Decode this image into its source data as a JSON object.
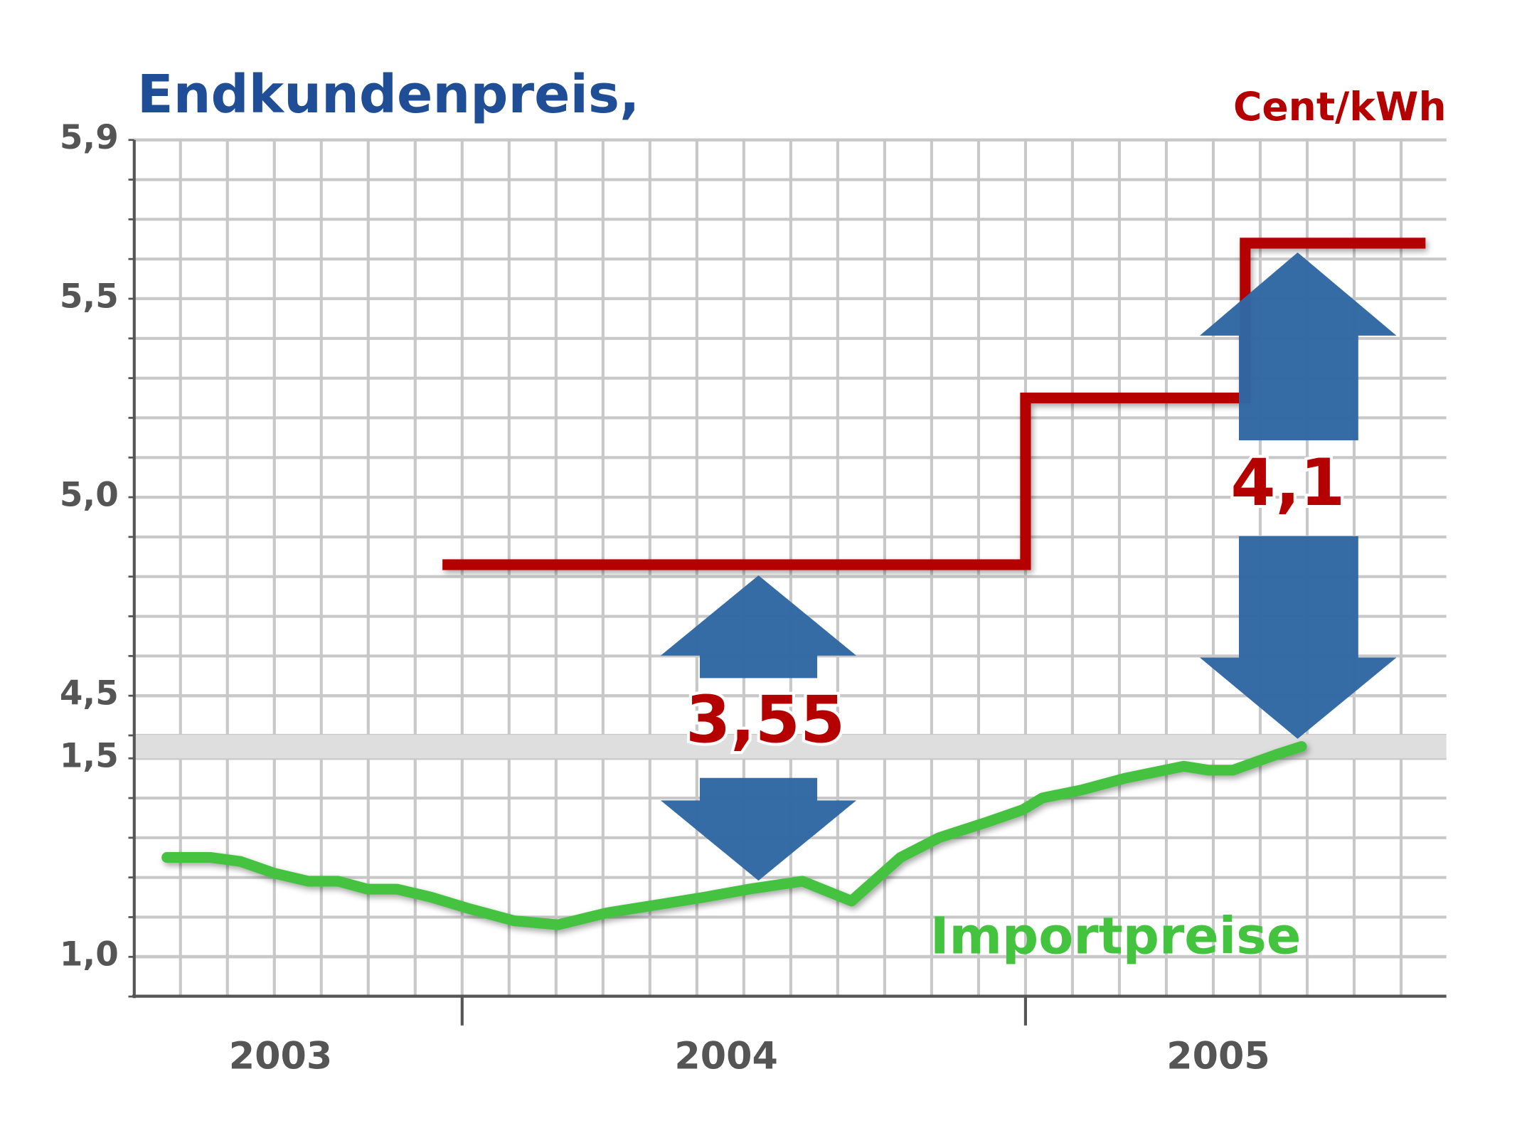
{
  "chart_data": {
    "type": "line",
    "title": "Endkundenpreis,",
    "unit": "Cent/kWh",
    "categories": [
      "2003",
      "2004",
      "2005"
    ],
    "xlim": [
      2003.418,
      2005.747
    ],
    "xticks": [
      2004,
      2005
    ],
    "ylim": [
      4.5,
      5.9
    ],
    "yticks": [
      {
        "value": 4.5,
        "label": "4,5"
      },
      {
        "value": 5.0,
        "label": "5,0"
      },
      {
        "value": 5.5,
        "label": "5,5"
      },
      {
        "value": 5.9,
        "label": "5,9"
      }
    ],
    "y2lim": [
      0.9,
      1.5
    ],
    "y2ticks": [
      {
        "value": 1.0,
        "label": "1,0"
      },
      {
        "value": 1.5,
        "label": "1,5"
      }
    ],
    "grid": true,
    "series": [
      {
        "color": "#b50000",
        "step": "post",
        "x": [
          2003.965,
          2005.0,
          2005.39,
          2005.71
        ],
        "values": [
          4.83,
          5.25,
          5.64,
          5.64
        ]
      },
      {
        "name": "Importpreise",
        "color": "#44c33f",
        "axis": "y2",
        "x": [
          2003.476,
          2003.554,
          2003.606,
          2003.667,
          2003.727,
          2003.78,
          2003.832,
          2003.884,
          2003.944,
          2004.014,
          2004.092,
          2004.17,
          2004.257,
          2004.344,
          2004.431,
          2004.509,
          2004.604,
          2004.691,
          2004.778,
          2004.847,
          2004.934,
          2004.995,
          2005.03,
          2005.099,
          2005.177,
          2005.281,
          2005.325,
          2005.368,
          2005.446,
          2005.49
        ],
        "values": [
          1.25,
          1.25,
          1.24,
          1.21,
          1.19,
          1.19,
          1.17,
          1.17,
          1.15,
          1.12,
          1.09,
          1.08,
          1.11,
          1.13,
          1.15,
          1.17,
          1.19,
          1.14,
          1.25,
          1.3,
          1.34,
          1.37,
          1.4,
          1.42,
          1.45,
          1.48,
          1.47,
          1.47,
          1.51,
          1.53
        ]
      }
    ],
    "annotations": [
      "3,55",
      "4,1"
    ]
  }
}
